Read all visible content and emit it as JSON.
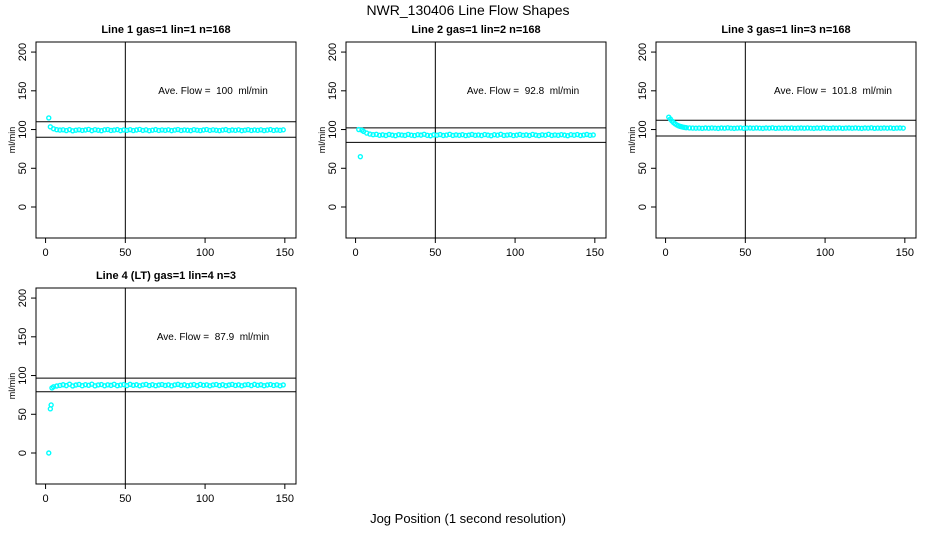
{
  "page": {
    "title": "NWR_130406  Line Flow Shapes",
    "xlabel": "Jog Position (1 second resolution)",
    "ylabel": "ml/min"
  },
  "chart_data": {
    "type": "scatter",
    "title": "NWR_130406  Line Flow Shapes",
    "xlabel": "Jog Position (1 second resolution)",
    "ylabel": "ml/min",
    "x_ticks": [
      0,
      50,
      100,
      150
    ],
    "y_ticks": [
      0,
      50,
      100,
      150,
      200
    ],
    "xlim": [
      -6,
      157
    ],
    "ylim": [
      -40,
      213
    ],
    "grid": false,
    "legend": "none",
    "point_color": "#00ffff",
    "line_color": "#000000",
    "vline_x": 50,
    "plots": [
      {
        "title": "Line 1 gas=1 lin=1 n=168",
        "annotation": "Ave. Flow =  100  ml/min",
        "ave_flow": 100,
        "band_lines": [
          90,
          110
        ],
        "points": [
          [
            2,
            115
          ],
          [
            3,
            103.5
          ],
          [
            5,
            101
          ],
          [
            7,
            99.8
          ],
          [
            9,
            99.3
          ],
          [
            11,
            99.6
          ],
          [
            13,
            98.7
          ],
          [
            15,
            99.9
          ],
          [
            17,
            98.4
          ],
          [
            19,
            99.2
          ],
          [
            21,
            99.7
          ],
          [
            23,
            98.9
          ],
          [
            25,
            99.4
          ],
          [
            27,
            100.1
          ],
          [
            29,
            98.6
          ],
          [
            31,
            99.8
          ],
          [
            33,
            99.1
          ],
          [
            35,
            98.5
          ],
          [
            37,
            99.6
          ],
          [
            39,
            100.0
          ],
          [
            41,
            98.8
          ],
          [
            43,
            99.3
          ],
          [
            45,
            99.9
          ],
          [
            47,
            98.6
          ],
          [
            49,
            99.5
          ],
          [
            51,
            99.0
          ],
          [
            53,
            99.8
          ],
          [
            55,
            98.7
          ],
          [
            57,
            99.4
          ],
          [
            59,
            100.1
          ],
          [
            61,
            98.9
          ],
          [
            63,
            99.6
          ],
          [
            65,
            98.5
          ],
          [
            67,
            99.2
          ],
          [
            69,
            99.9
          ],
          [
            71,
            98.8
          ],
          [
            73,
            99.5
          ],
          [
            75,
            99.0
          ],
          [
            77,
            99.7
          ],
          [
            79,
            98.6
          ],
          [
            81,
            99.3
          ],
          [
            83,
            100.0
          ],
          [
            85,
            98.8
          ],
          [
            87,
            99.5
          ],
          [
            89,
            99.1
          ],
          [
            91,
            98.6
          ],
          [
            93,
            99.8
          ],
          [
            95,
            99.2
          ],
          [
            97,
            98.7
          ],
          [
            99,
            99.4
          ],
          [
            101,
            100.0
          ],
          [
            103,
            98.9
          ],
          [
            105,
            99.6
          ],
          [
            107,
            99.1
          ],
          [
            109,
            98.6
          ],
          [
            111,
            99.3
          ],
          [
            113,
            99.9
          ],
          [
            115,
            98.7
          ],
          [
            117,
            99.4
          ],
          [
            119,
            99.0
          ],
          [
            121,
            99.7
          ],
          [
            123,
            98.6
          ],
          [
            125,
            99.2
          ],
          [
            127,
            99.8
          ],
          [
            129,
            98.8
          ],
          [
            131,
            99.5
          ],
          [
            133,
            99.0
          ],
          [
            135,
            99.6
          ],
          [
            137,
            98.7
          ],
          [
            139,
            99.3
          ],
          [
            141,
            99.9
          ],
          [
            143,
            98.8
          ],
          [
            145,
            99.4
          ],
          [
            147,
            99.0
          ],
          [
            149,
            99.6
          ]
        ]
      },
      {
        "title": "Line 2 gas=1 lin=2 n=168",
        "annotation": "Ave. Flow =  92.8  ml/min",
        "ave_flow": 92.8,
        "band_lines": [
          83.5,
          102.1
        ],
        "points": [
          [
            2,
            100
          ],
          [
            3,
            65
          ],
          [
            4,
            99.2
          ],
          [
            5,
            97.6
          ],
          [
            7,
            95.4
          ],
          [
            9,
            94.1
          ],
          [
            11,
            93.4
          ],
          [
            13,
            93.8
          ],
          [
            15,
            92.6
          ],
          [
            17,
            93.2
          ],
          [
            19,
            92.3
          ],
          [
            21,
            93.6
          ],
          [
            23,
            92.8
          ],
          [
            25,
            92.1
          ],
          [
            27,
            93.4
          ],
          [
            29,
            92.9
          ],
          [
            31,
            92.4
          ],
          [
            33,
            93.7
          ],
          [
            35,
            92.7
          ],
          [
            37,
            92.2
          ],
          [
            39,
            93.3
          ],
          [
            41,
            92.8
          ],
          [
            43,
            93.9
          ],
          [
            45,
            92.5
          ],
          [
            47,
            92.0
          ],
          [
            49,
            93.2
          ],
          [
            51,
            92.7
          ],
          [
            53,
            93.5
          ],
          [
            55,
            92.3
          ],
          [
            57,
            92.9
          ],
          [
            59,
            93.8
          ],
          [
            61,
            92.4
          ],
          [
            63,
            93.1
          ],
          [
            65,
            92.6
          ],
          [
            67,
            93.4
          ],
          [
            69,
            92.2
          ],
          [
            71,
            92.8
          ],
          [
            73,
            93.6
          ],
          [
            75,
            92.5
          ],
          [
            77,
            93.0
          ],
          [
            79,
            92.3
          ],
          [
            81,
            93.5
          ],
          [
            83,
            92.8
          ],
          [
            85,
            92.1
          ],
          [
            87,
            93.3
          ],
          [
            89,
            92.7
          ],
          [
            91,
            93.9
          ],
          [
            93,
            92.4
          ],
          [
            95,
            92.9
          ],
          [
            97,
            93.4
          ],
          [
            99,
            92.2
          ],
          [
            101,
            92.8
          ],
          [
            103,
            93.6
          ],
          [
            105,
            92.5
          ],
          [
            107,
            93.1
          ],
          [
            109,
            92.3
          ],
          [
            111,
            93.7
          ],
          [
            113,
            92.8
          ],
          [
            115,
            92.2
          ],
          [
            117,
            93.2
          ],
          [
            119,
            92.6
          ],
          [
            121,
            93.8
          ],
          [
            123,
            92.4
          ],
          [
            125,
            93.0
          ],
          [
            127,
            92.5
          ],
          [
            129,
            93.4
          ],
          [
            131,
            92.8
          ],
          [
            133,
            92.1
          ],
          [
            135,
            93.3
          ],
          [
            137,
            92.7
          ],
          [
            139,
            93.5
          ],
          [
            141,
            92.3
          ],
          [
            143,
            92.9
          ],
          [
            145,
            93.6
          ],
          [
            147,
            92.5
          ],
          [
            149,
            93.0
          ]
        ]
      },
      {
        "title": "Line 3 gas=1 lin=3 n=168",
        "annotation": "Ave. Flow =  101.8  ml/min",
        "ave_flow": 101.8,
        "band_lines": [
          91.6,
          112.0
        ],
        "points": [
          [
            2,
            116
          ],
          [
            3,
            113.5
          ],
          [
            4,
            111
          ],
          [
            5,
            109
          ],
          [
            6,
            107.3
          ],
          [
            7,
            106
          ],
          [
            8,
            105
          ],
          [
            9,
            104.2
          ],
          [
            10,
            103.6
          ],
          [
            11,
            103.1
          ],
          [
            12,
            102.7
          ],
          [
            13,
            102.4
          ],
          [
            15,
            102.1
          ],
          [
            17,
            101.9
          ],
          [
            19,
            101.8
          ],
          [
            21,
            101.9
          ],
          [
            23,
            101.6
          ],
          [
            25,
            102.0
          ],
          [
            27,
            101.7
          ],
          [
            29,
            102.1
          ],
          [
            31,
            101.8
          ],
          [
            33,
            101.5
          ],
          [
            35,
            102.0
          ],
          [
            37,
            101.7
          ],
          [
            39,
            102.2
          ],
          [
            41,
            101.8
          ],
          [
            43,
            101.5
          ],
          [
            45,
            101.9
          ],
          [
            47,
            102.1
          ],
          [
            49,
            101.6
          ],
          [
            51,
            101.9
          ],
          [
            53,
            102.0
          ],
          [
            55,
            101.7
          ],
          [
            57,
            102.1
          ],
          [
            59,
            101.8
          ],
          [
            61,
            101.5
          ],
          [
            63,
            102.0
          ],
          [
            65,
            101.8
          ],
          [
            67,
            102.2
          ],
          [
            69,
            101.6
          ],
          [
            71,
            101.9
          ],
          [
            73,
            101.7
          ],
          [
            75,
            102.0
          ],
          [
            77,
            101.8
          ],
          [
            79,
            102.1
          ],
          [
            81,
            101.6
          ],
          [
            83,
            101.9
          ],
          [
            85,
            102.0
          ],
          [
            87,
            101.7
          ],
          [
            89,
            102.1
          ],
          [
            91,
            101.8
          ],
          [
            93,
            101.5
          ],
          [
            95,
            102.0
          ],
          [
            97,
            101.7
          ],
          [
            99,
            102.2
          ],
          [
            101,
            101.8
          ],
          [
            103,
            101.6
          ],
          [
            105,
            102.0
          ],
          [
            107,
            101.8
          ],
          [
            109,
            102.1
          ],
          [
            111,
            101.6
          ],
          [
            113,
            101.9
          ],
          [
            115,
            102.0
          ],
          [
            117,
            101.7
          ],
          [
            119,
            102.1
          ],
          [
            121,
            101.8
          ],
          [
            123,
            101.5
          ],
          [
            125,
            102.0
          ],
          [
            127,
            101.8
          ],
          [
            129,
            102.2
          ],
          [
            131,
            101.6
          ],
          [
            133,
            101.9
          ],
          [
            135,
            101.7
          ],
          [
            137,
            102.0
          ],
          [
            139,
            101.8
          ],
          [
            141,
            102.1
          ],
          [
            143,
            101.6
          ],
          [
            145,
            101.9
          ],
          [
            147,
            102.0
          ],
          [
            149,
            101.8
          ]
        ]
      },
      {
        "title": "Line 4 (LT) gas=1 lin=4 n=3",
        "annotation": "Ave. Flow =  87.9  ml/min",
        "ave_flow": 87.9,
        "band_lines": [
          79.1,
          96.7
        ],
        "points": [
          [
            2,
            0
          ],
          [
            3,
            57
          ],
          [
            3.5,
            62
          ],
          [
            4,
            84
          ],
          [
            5,
            85.5
          ],
          [
            7,
            86.5
          ],
          [
            9,
            87.2
          ],
          [
            11,
            88.1
          ],
          [
            13,
            87.0
          ],
          [
            15,
            88.9
          ],
          [
            17,
            86.6
          ],
          [
            19,
            87.8
          ],
          [
            21,
            88.5
          ],
          [
            23,
            86.9
          ],
          [
            25,
            88.2
          ],
          [
            27,
            87.4
          ],
          [
            29,
            88.8
          ],
          [
            31,
            86.7
          ],
          [
            33,
            87.9
          ],
          [
            35,
            88.4
          ],
          [
            37,
            86.8
          ],
          [
            39,
            88.0
          ],
          [
            41,
            87.3
          ],
          [
            43,
            88.7
          ],
          [
            45,
            86.9
          ],
          [
            47,
            87.7
          ],
          [
            49,
            88.3
          ],
          [
            51,
            87.0
          ],
          [
            53,
            88.6
          ],
          [
            55,
            87.4
          ],
          [
            57,
            88.1
          ],
          [
            59,
            86.8
          ],
          [
            61,
            87.9
          ],
          [
            63,
            88.5
          ],
          [
            65,
            87.1
          ],
          [
            67,
            88.2
          ],
          [
            69,
            86.9
          ],
          [
            71,
            87.8
          ],
          [
            73,
            88.4
          ],
          [
            75,
            87.2
          ],
          [
            77,
            88.0
          ],
          [
            79,
            86.7
          ],
          [
            81,
            87.9
          ],
          [
            83,
            88.6
          ],
          [
            85,
            87.3
          ],
          [
            87,
            88.1
          ],
          [
            89,
            86.9
          ],
          [
            91,
            87.7
          ],
          [
            93,
            88.3
          ],
          [
            95,
            87.0
          ],
          [
            97,
            88.5
          ],
          [
            99,
            87.4
          ],
          [
            101,
            88.0
          ],
          [
            103,
            86.8
          ],
          [
            105,
            87.9
          ],
          [
            107,
            88.4
          ],
          [
            109,
            87.1
          ],
          [
            111,
            88.2
          ],
          [
            113,
            86.9
          ],
          [
            115,
            87.8
          ],
          [
            117,
            88.5
          ],
          [
            119,
            87.2
          ],
          [
            121,
            88.0
          ],
          [
            123,
            86.8
          ],
          [
            125,
            87.9
          ],
          [
            127,
            88.3
          ],
          [
            129,
            87.1
          ],
          [
            131,
            88.6
          ],
          [
            133,
            87.4
          ],
          [
            135,
            88.1
          ],
          [
            137,
            86.9
          ],
          [
            139,
            87.8
          ],
          [
            141,
            88.4
          ],
          [
            143,
            87.2
          ],
          [
            145,
            88.0
          ],
          [
            147,
            86.8
          ],
          [
            149,
            87.9
          ]
        ]
      }
    ]
  }
}
